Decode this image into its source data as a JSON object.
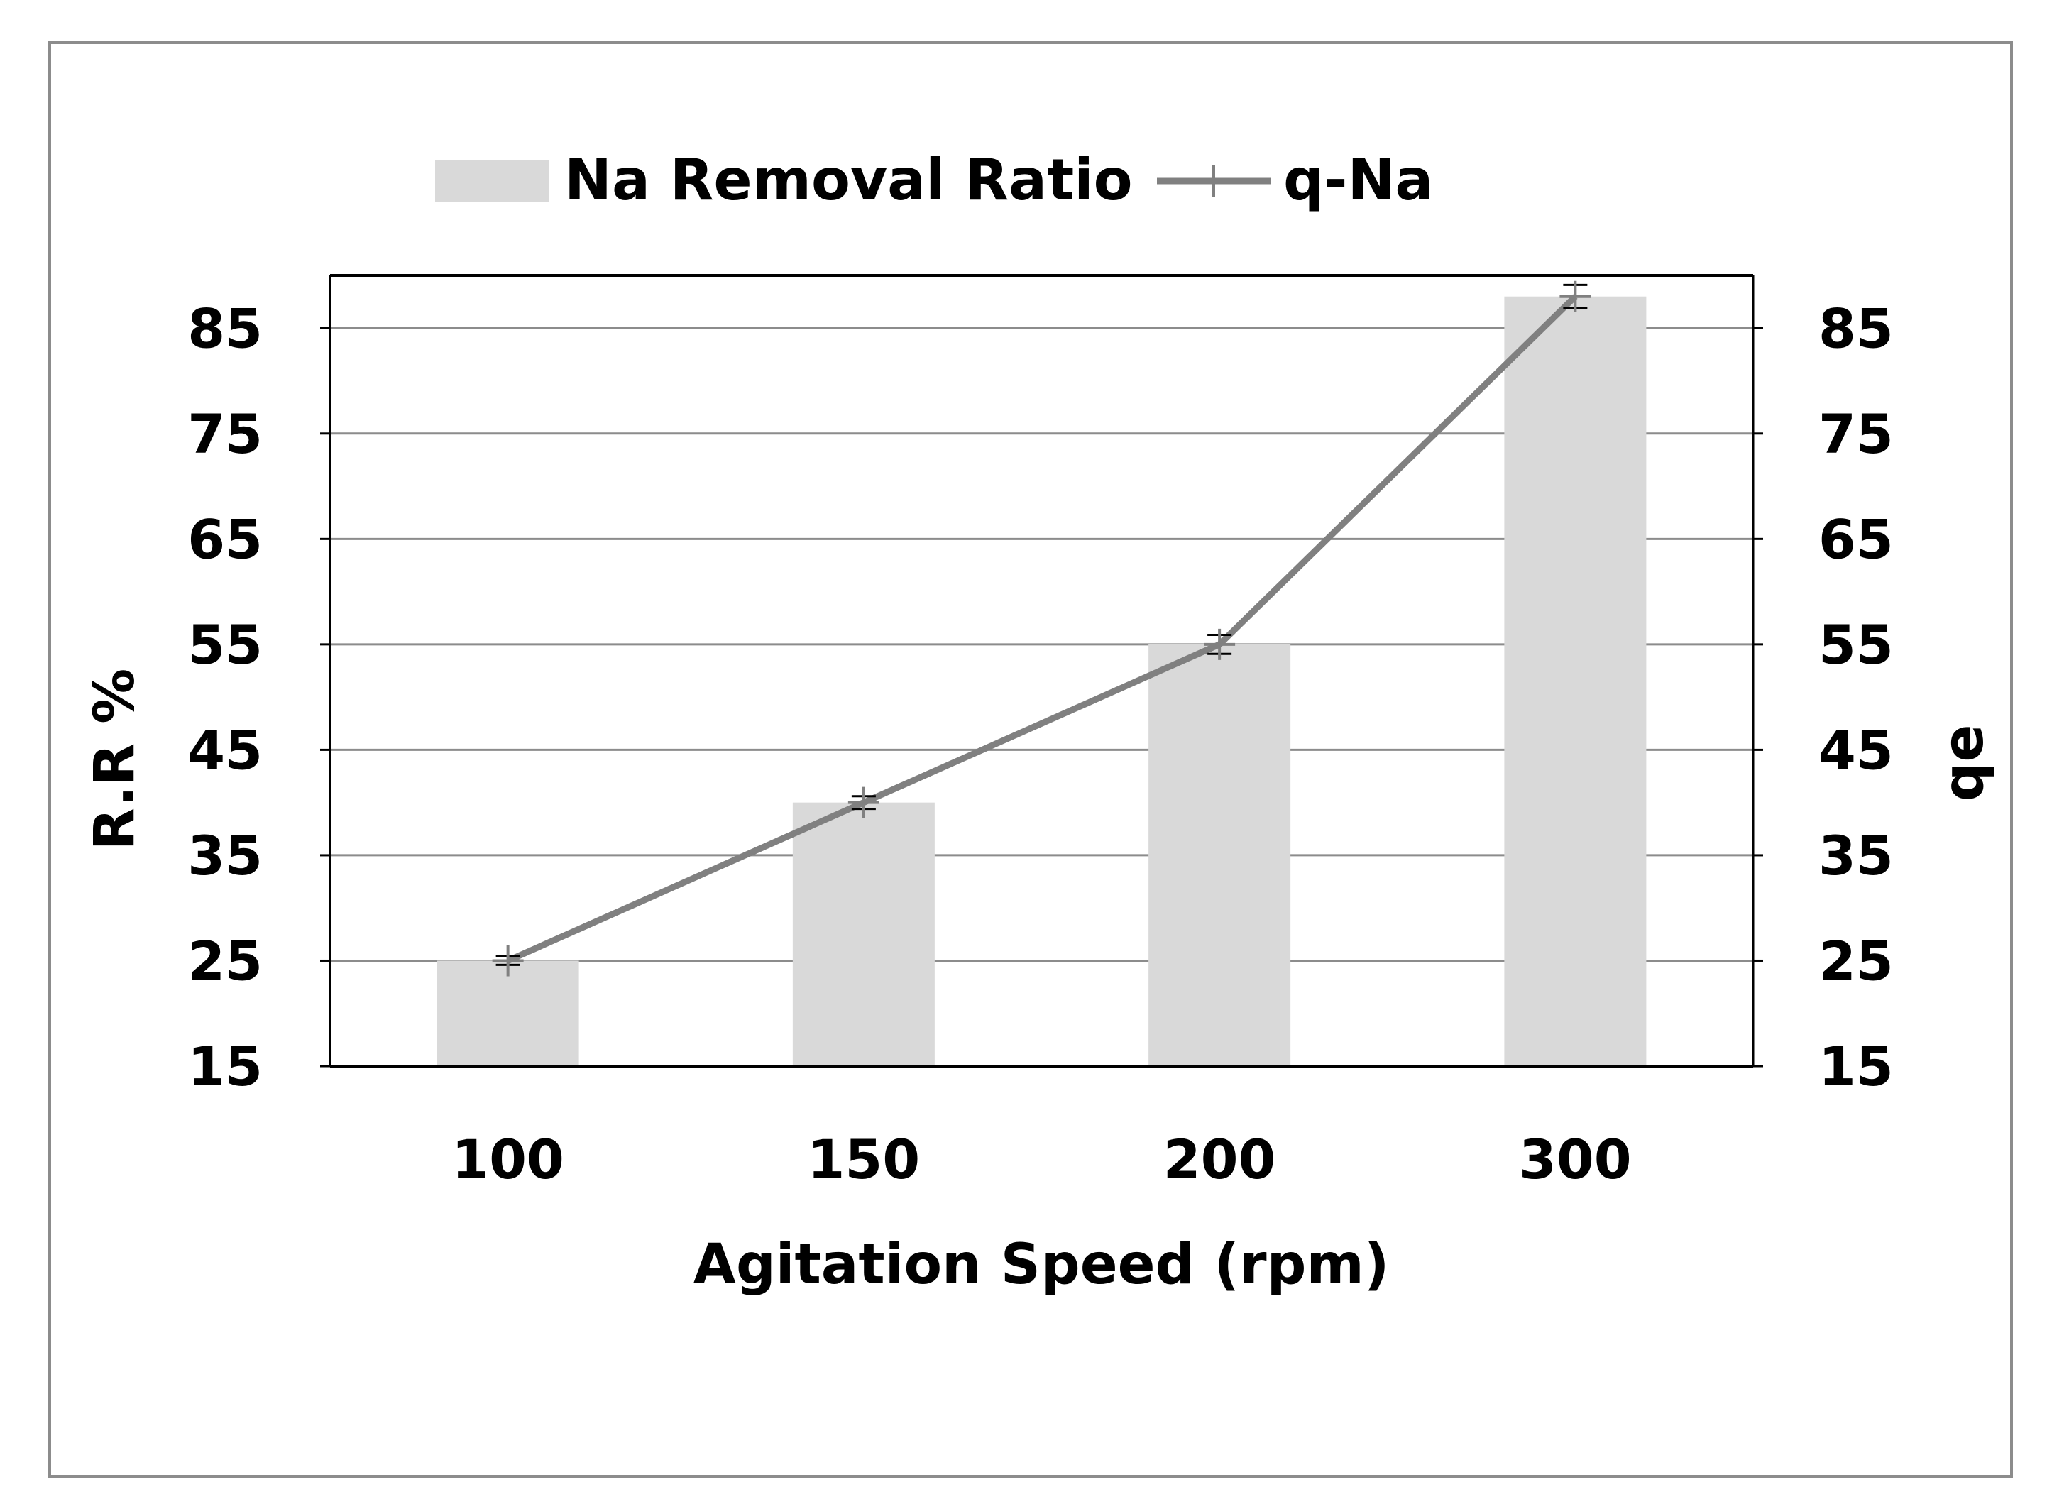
{
  "chart_data": {
    "type": "bar",
    "categories": [
      "100",
      "150",
      "200",
      "300"
    ],
    "series": [
      {
        "name": "Na Removal Ratio",
        "type": "bar",
        "axis": "left",
        "values": [
          25,
          40,
          55,
          88
        ],
        "color": "#d9d9d9"
      },
      {
        "name": "q-Na",
        "type": "line",
        "axis": "right",
        "values": [
          25,
          40,
          55,
          88
        ],
        "error": [
          0.4,
          0.6,
          0.9,
          1.1
        ],
        "color": "#808080"
      }
    ],
    "xlabel": "Agitation Speed (rpm)",
    "ylabel": "R.R %",
    "y2label": "qe",
    "ylim": [
      15,
      90
    ],
    "y2lim": [
      15,
      90
    ],
    "yticks": [
      15,
      25,
      35,
      45,
      55,
      65,
      75,
      85
    ],
    "y2ticks": [
      15,
      25,
      35,
      45,
      55,
      65,
      75,
      85
    ],
    "grid": true,
    "legend_position": "top-center"
  }
}
